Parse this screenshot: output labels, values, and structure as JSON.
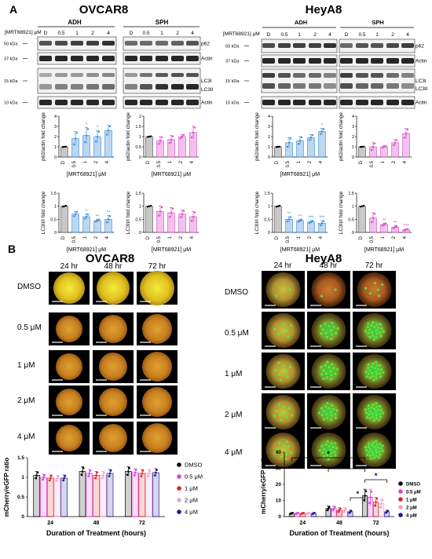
{
  "panel_a": {
    "letter": "A",
    "ovcar8": {
      "title": "OVCAR8",
      "groups": [
        "ADH",
        "SPH"
      ],
      "treatment_label": "[MRT68921] μM",
      "lanes": [
        "D",
        "0.5",
        "1",
        "2",
        "4"
      ],
      "mw": [
        "50 kDa",
        "37 kDa",
        "15 kDa",
        "10 kDa",
        "37 kDa"
      ],
      "bands": [
        "p62",
        "Actin",
        "LC3I",
        "LC3II",
        "Actin"
      ]
    },
    "heya8": {
      "title": "HeyA8",
      "groups": [
        "ADH",
        "SPH"
      ],
      "treatment_label": "[MRT68921] μM",
      "lanes": [
        "D",
        "0.5",
        "1",
        "2",
        "4"
      ],
      "mw": [
        "50 kDa",
        "37 kDa",
        "15 kDa",
        "10 kDa",
        "37 kDa"
      ],
      "bands": [
        "p62",
        "Actin",
        "LC3I",
        "LC3II",
        "Actin"
      ]
    }
  },
  "panel_b": {
    "letter": "B",
    "ovcar8": {
      "title": "OVCAR8",
      "times": [
        "24 hr",
        "48 hr",
        "72 hr"
      ],
      "conditions": [
        "DMSO",
        "0.5 μM",
        "1 μM",
        "2 μM",
        "4 μM"
      ]
    },
    "heya8": {
      "title": "HeyA8",
      "times": [
        "24 hr",
        "48 hr",
        "72 hr"
      ],
      "conditions": [
        "DMSO",
        "0.5 μM",
        "1 μM",
        "2 μM",
        "4 μM"
      ]
    },
    "legend": [
      "DMSO",
      "0.5 μM",
      "1 μM",
      "2 μM",
      "4 μM"
    ]
  },
  "colors": {
    "control": "#c8c8c8",
    "blue": "#3f8fd8",
    "magenta": "#d94fc8",
    "dmso": "#000000",
    "c05": "#e040e0",
    "c1": "#e02020",
    "c2": "#f0a0c8",
    "c4": "#1a1a9a"
  },
  "chart_data": [
    {
      "id": "ovcar8-adh-p62",
      "type": "bar",
      "categories": [
        "D",
        "0.5",
        "1",
        "2",
        "4"
      ],
      "values": [
        1.0,
        1.8,
        2.1,
        2.0,
        2.6
      ],
      "errors": [
        0.0,
        0.7,
        0.8,
        0.6,
        0.5
      ],
      "sig": [
        "",
        "",
        "*",
        "*",
        ""
      ],
      "ylabel": "p62/actin fold change",
      "xlabel": "[MRT68921] μM",
      "ylim": [
        0,
        4
      ],
      "yticks": [
        0,
        1,
        2,
        3,
        4
      ],
      "color": "#3f8fd8"
    },
    {
      "id": "ovcar8-sph-p62",
      "type": "bar",
      "categories": [
        "D",
        "0.5",
        "1",
        "2",
        "4"
      ],
      "values": [
        1.0,
        0.8,
        0.85,
        1.0,
        1.2
      ],
      "errors": [
        0.0,
        0.2,
        0.2,
        0.1,
        0.3
      ],
      "sig": [
        "",
        "",
        "",
        "",
        ""
      ],
      "ylabel": "p62/actin fold change",
      "xlabel": "[MRT68921] μM",
      "ylim": [
        0,
        2.0
      ],
      "yticks": [
        0.0,
        0.5,
        1.0,
        1.5,
        2.0
      ],
      "color": "#d94fc8"
    },
    {
      "id": "heya8-adh-p62",
      "type": "bar",
      "categories": [
        "D",
        "0.5",
        "1",
        "2",
        "4"
      ],
      "values": [
        1.0,
        1.4,
        1.6,
        1.9,
        2.5
      ],
      "errors": [
        0.0,
        0.5,
        0.4,
        0.3,
        0.3
      ],
      "sig": [
        "",
        "",
        "",
        "",
        "*"
      ],
      "ylabel": "p62/actin fold change",
      "xlabel": "[MRT68921] μM",
      "ylim": [
        0,
        4
      ],
      "yticks": [
        0,
        1,
        2,
        3,
        4
      ],
      "color": "#3f8fd8"
    },
    {
      "id": "heya8-sph-p62",
      "type": "bar",
      "categories": [
        "D",
        "0.5",
        "1",
        "2",
        "4"
      ],
      "values": [
        1.0,
        1.0,
        1.0,
        1.4,
        2.3
      ],
      "errors": [
        0.0,
        0.4,
        0.1,
        0.3,
        0.5
      ],
      "sig": [
        "",
        "",
        "",
        "",
        ""
      ],
      "ylabel": "p62/actin fold change",
      "xlabel": "",
      "ylim": [
        0,
        4
      ],
      "yticks": [
        0,
        1,
        2,
        3,
        4
      ],
      "color": "#d94fc8"
    },
    {
      "id": "ovcar8-adh-lc3",
      "type": "bar",
      "categories": [
        "D",
        "0.5",
        "1",
        "2",
        "4"
      ],
      "values": [
        1.0,
        0.7,
        0.6,
        0.45,
        0.5
      ],
      "errors": [
        0.0,
        0.1,
        0.1,
        0.05,
        0.15
      ],
      "sig": [
        "",
        "",
        "*",
        "**",
        "**"
      ],
      "ylabel": "LC3II/I fold change",
      "xlabel": "[MRT68921] μM",
      "ylim": [
        0,
        1.5
      ],
      "yticks": [
        0.0,
        0.5,
        1.0,
        1.5
      ],
      "color": "#3f8fd8"
    },
    {
      "id": "ovcar8-sph-lc3",
      "type": "bar",
      "categories": [
        "D",
        "0.5",
        "1",
        "2",
        "4"
      ],
      "values": [
        1.0,
        0.8,
        0.75,
        0.7,
        0.6
      ],
      "errors": [
        0.0,
        0.2,
        0.2,
        0.15,
        0.2
      ],
      "sig": [
        "",
        "",
        "",
        "",
        ""
      ],
      "ylabel": "LC3II/I fold change",
      "xlabel": "[MRT68921] μM",
      "ylim": [
        0,
        1.5
      ],
      "yticks": [
        0.0,
        0.5,
        1.0,
        1.5
      ],
      "color": "#d94fc8"
    },
    {
      "id": "heya8-adh-lc3",
      "type": "bar",
      "categories": [
        "D",
        "0.5",
        "1",
        "2",
        "4"
      ],
      "values": [
        1.0,
        0.5,
        0.45,
        0.4,
        0.35
      ],
      "errors": [
        0.0,
        0.1,
        0.05,
        0.05,
        0.1
      ],
      "sig": [
        "",
        "**",
        "**",
        "***",
        "***"
      ],
      "ylabel": "LC3II/I fold change",
      "xlabel": "[MRT68921] μM",
      "ylim": [
        0,
        1.5
      ],
      "yticks": [
        0.0,
        0.5,
        1.0,
        1.5
      ],
      "color": "#3f8fd8"
    },
    {
      "id": "heya8-sph-lc3",
      "type": "bar",
      "categories": [
        "D",
        "0.5",
        "1",
        "2",
        "4"
      ],
      "values": [
        1.0,
        0.55,
        0.3,
        0.2,
        0.1
      ],
      "errors": [
        0.0,
        0.2,
        0.05,
        0.05,
        0.03
      ],
      "sig": [
        "",
        "",
        "**",
        "**",
        "***"
      ],
      "ylabel": "LC3II/I fold change",
      "xlabel": "[MRT68921] μM",
      "ylim": [
        0,
        1.5
      ],
      "yticks": [
        0.0,
        0.5,
        1.0,
        1.5
      ],
      "color": "#d94fc8"
    },
    {
      "id": "ovcar8-ratio",
      "type": "bar",
      "categories": [
        "24",
        "48",
        "72"
      ],
      "series": [
        {
          "name": "DMSO",
          "values": [
            1.05,
            1.15,
            1.15
          ],
          "errors": [
            0.1,
            0.12,
            0.12
          ]
        },
        {
          "name": "0.5 μM",
          "values": [
            1.0,
            1.1,
            1.12
          ],
          "errors": [
            0.08,
            0.1,
            0.1
          ]
        },
        {
          "name": "1 μM",
          "values": [
            0.98,
            1.05,
            1.1
          ],
          "errors": [
            0.08,
            0.1,
            0.1
          ]
        },
        {
          "name": "2 μM",
          "values": [
            0.97,
            1.05,
            1.1
          ],
          "errors": [
            0.08,
            0.1,
            0.1
          ]
        },
        {
          "name": "4 μM",
          "values": [
            0.98,
            1.1,
            1.12
          ],
          "errors": [
            0.08,
            0.1,
            0.1
          ]
        }
      ],
      "ylabel": "mCherry/eGFP ratio",
      "xlabel": "Duration of Treatment (hours)",
      "ylim": [
        0,
        1.5
      ],
      "yticks": [
        0.0,
        0.5,
        1.0,
        1.5
      ],
      "legend": "right"
    },
    {
      "id": "heya8-ratio",
      "type": "bar",
      "categories": [
        "24",
        "48",
        "72"
      ],
      "series": [
        {
          "name": "DMSO",
          "values": [
            2,
            5,
            13
          ],
          "errors": [
            0.5,
            1.5,
            4
          ]
        },
        {
          "name": "0.5 μM",
          "values": [
            2,
            5,
            12
          ],
          "errors": [
            0.5,
            1.5,
            5
          ]
        },
        {
          "name": "1 μM",
          "values": [
            2,
            4,
            9
          ],
          "errors": [
            0.5,
            1.5,
            3
          ]
        },
        {
          "name": "2 μM",
          "values": [
            2,
            4,
            8
          ],
          "errors": [
            0.5,
            1.5,
            3
          ]
        },
        {
          "name": "4 μM",
          "values": [
            2,
            3,
            3
          ],
          "errors": [
            0.5,
            1,
            1
          ]
        }
      ],
      "significance": [
        "*",
        "**",
        "*",
        "*"
      ],
      "ylabel": "mCherry/eGFP ratio",
      "xlabel": "Duration of Treatment (hours)",
      "ylim": [
        0,
        40
      ],
      "yticks": [
        0,
        10,
        20,
        30,
        40
      ],
      "legend": "right"
    }
  ]
}
